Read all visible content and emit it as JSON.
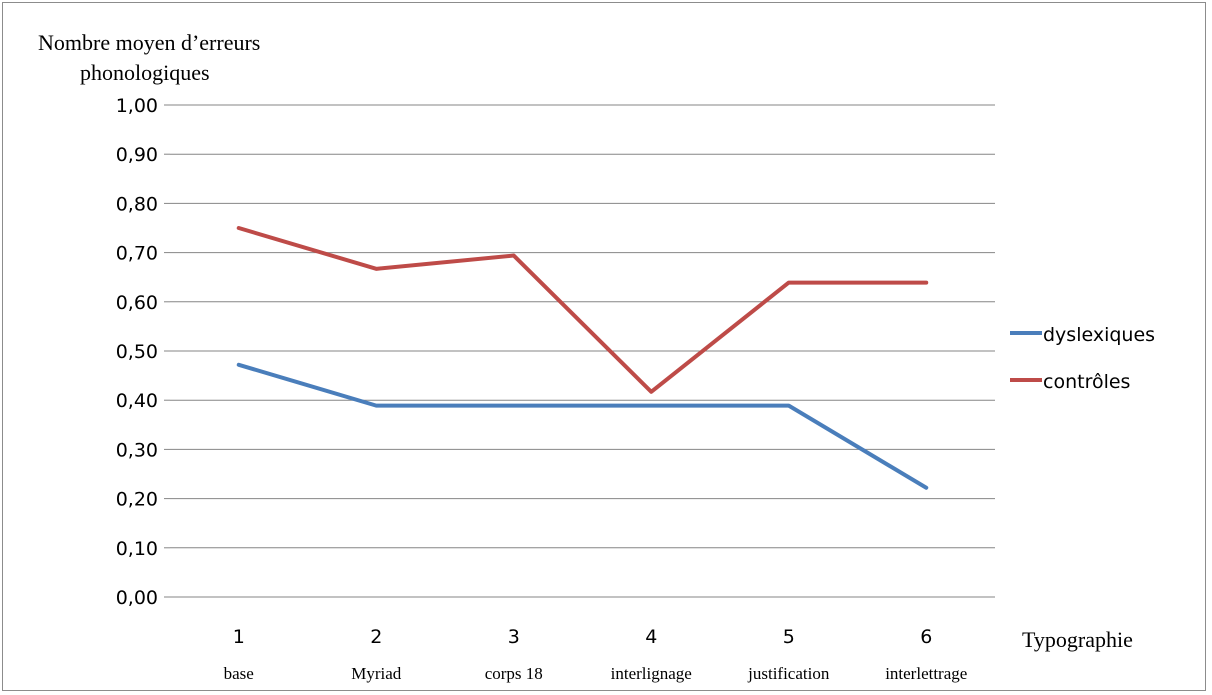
{
  "chart_data": {
    "type": "line",
    "ylabel_line1": "Nombre moyen d’erreurs",
    "ylabel_line2": "phonologiques",
    "xlabel": "Typographie",
    "x": [
      "1",
      "2",
      "3",
      "4",
      "5",
      "6"
    ],
    "x_sublabels": [
      "base",
      "Myriad",
      "corps 18",
      "interlignage",
      "justification",
      "interlettrage"
    ],
    "ylim": [
      0,
      1
    ],
    "yticks": [
      "0,00",
      "0,10",
      "0,20",
      "0,30",
      "0,40",
      "0,50",
      "0,60",
      "0,70",
      "0,80",
      "0,90",
      "1,00"
    ],
    "grid": true,
    "legend_position": "right",
    "series": [
      {
        "name": "dyslexiques",
        "color": "#4a7ebb",
        "values": [
          0.472,
          0.389,
          0.389,
          0.389,
          0.389,
          0.222
        ]
      },
      {
        "name": "contrôles",
        "color": "#be4b48",
        "values": [
          0.75,
          0.667,
          0.694,
          0.417,
          0.639,
          0.639
        ]
      }
    ]
  }
}
